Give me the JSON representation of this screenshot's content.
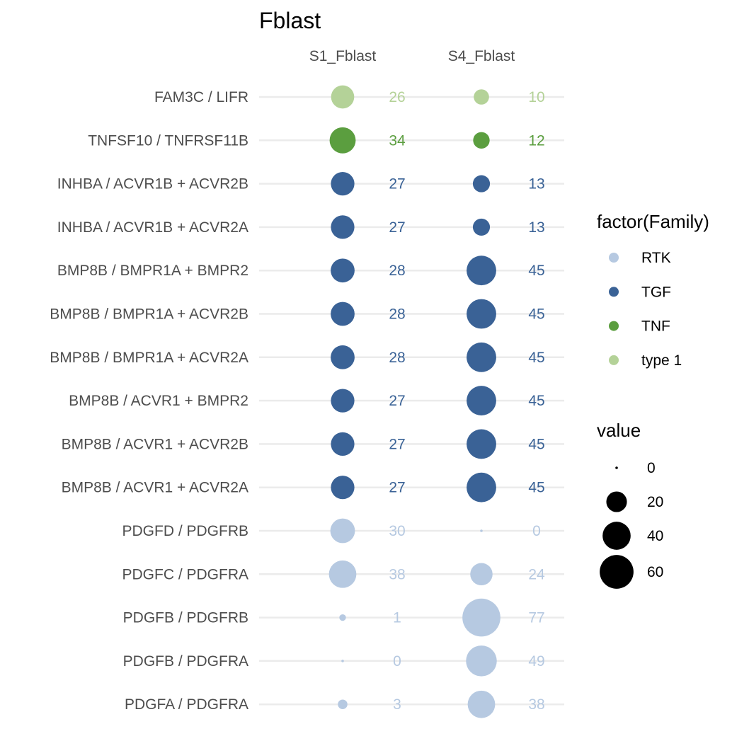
{
  "chart_data": {
    "type": "scatter",
    "title": "Fblast",
    "columns": [
      "S1_Fblast",
      "S4_Fblast"
    ],
    "rows": [
      {
        "label": "FAM3C / LIFR",
        "family": "type 1",
        "values": [
          26,
          10
        ]
      },
      {
        "label": "TNFSF10 / TNFRSF11B",
        "family": "TNF",
        "values": [
          34,
          12
        ]
      },
      {
        "label": "INHBA / ACVR1B + ACVR2B",
        "family": "TGF",
        "values": [
          27,
          13
        ]
      },
      {
        "label": "INHBA / ACVR1B + ACVR2A",
        "family": "TGF",
        "values": [
          27,
          13
        ]
      },
      {
        "label": "BMP8B / BMPR1A + BMPR2",
        "family": "TGF",
        "values": [
          28,
          45
        ]
      },
      {
        "label": "BMP8B / BMPR1A + ACVR2B",
        "family": "TGF",
        "values": [
          28,
          45
        ]
      },
      {
        "label": "BMP8B / BMPR1A + ACVR2A",
        "family": "TGF",
        "values": [
          28,
          45
        ]
      },
      {
        "label": "BMP8B / ACVR1 + BMPR2",
        "family": "TGF",
        "values": [
          27,
          45
        ]
      },
      {
        "label": "BMP8B / ACVR1 + ACVR2B",
        "family": "TGF",
        "values": [
          27,
          45
        ]
      },
      {
        "label": "BMP8B / ACVR1 + ACVR2A",
        "family": "TGF",
        "values": [
          27,
          45
        ]
      },
      {
        "label": "PDGFD / PDGFRB",
        "family": "RTK",
        "values": [
          30,
          0
        ]
      },
      {
        "label": "PDGFC / PDGFRA",
        "family": "RTK",
        "values": [
          38,
          24
        ]
      },
      {
        "label": "PDGFB / PDGFRB",
        "family": "RTK",
        "values": [
          1,
          77
        ]
      },
      {
        "label": "PDGFB / PDGFRA",
        "family": "RTK",
        "values": [
          0,
          49
        ]
      },
      {
        "label": "PDGFA / PDGFRA",
        "family": "RTK",
        "values": [
          3,
          38
        ]
      }
    ],
    "family_legend": {
      "title": "factor(Family)",
      "items": [
        {
          "name": "RTK",
          "color": "#b6c9e1"
        },
        {
          "name": "TGF",
          "color": "#3a6296"
        },
        {
          "name": "TNF",
          "color": "#5b9e3f"
        },
        {
          "name": "type 1",
          "color": "#b4d298"
        }
      ]
    },
    "size_legend": {
      "title": "value",
      "breaks": [
        0,
        20,
        40,
        60
      ]
    },
    "grid": true
  }
}
